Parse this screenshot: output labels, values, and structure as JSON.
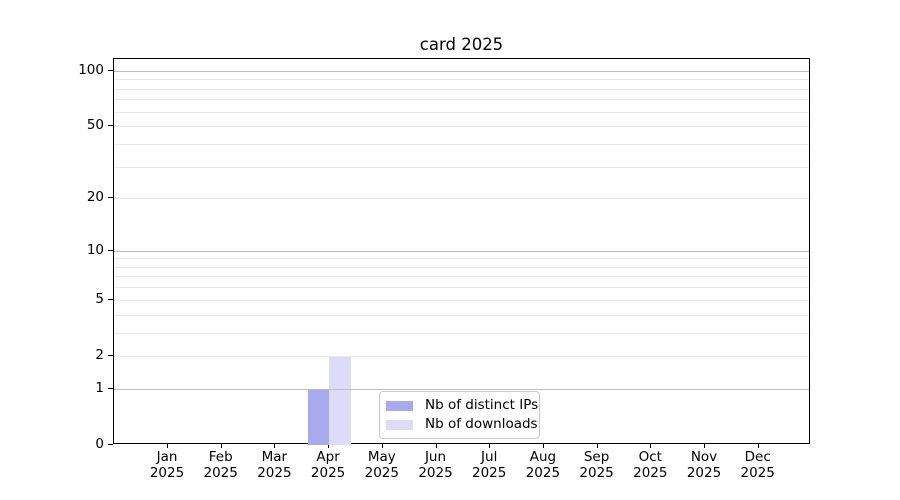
{
  "chart_data": {
    "type": "bar",
    "title": "card 2025",
    "categories": [
      "Jan",
      "Feb",
      "Mar",
      "Apr",
      "May",
      "Jun",
      "Jul",
      "Aug",
      "Sep",
      "Oct",
      "Nov",
      "Dec"
    ],
    "x_year_label": "2025",
    "series": [
      {
        "name": "Nb of distinct IPs",
        "color": "#a9a9f0",
        "values": [
          0,
          0,
          0,
          1,
          0,
          0,
          0,
          0,
          0,
          0,
          0,
          0
        ]
      },
      {
        "name": "Nb of downloads",
        "color": "#dcdcf8",
        "values": [
          0,
          0,
          0,
          2,
          0,
          0,
          0,
          0,
          0,
          0,
          0,
          0
        ]
      }
    ],
    "y_scale": "log1p",
    "ylim": [
      0,
      116
    ],
    "y_tick_labels": [
      0,
      1,
      2,
      5,
      10,
      20,
      50,
      100
    ],
    "grid": {
      "major_lines": [
        1,
        10,
        100
      ],
      "minor_lines": [
        2,
        3,
        4,
        5,
        6,
        7,
        8,
        9,
        20,
        30,
        40,
        50,
        60,
        70,
        80,
        90
      ],
      "major_color": "#bdbdbd",
      "minor_color": "#eaeaea"
    },
    "legend": {
      "position": "lower-center",
      "entries": [
        "Nb of distinct IPs",
        "Nb of downloads"
      ]
    },
    "axis_color": "#000000",
    "text_color": "#000000"
  }
}
